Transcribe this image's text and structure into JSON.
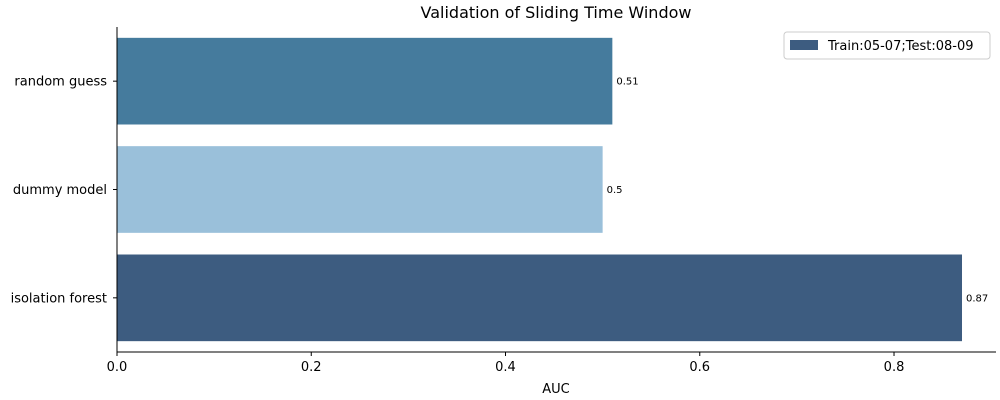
{
  "chart_data": {
    "type": "bar",
    "orientation": "horizontal",
    "title": "Validation of Sliding Time Window",
    "xlabel": "AUC",
    "ylabel": "",
    "xlim": [
      0,
      0.905
    ],
    "x_ticks": [
      "0.0",
      "0.2",
      "0.4",
      "0.6",
      "0.8"
    ],
    "categories": [
      "random guess",
      "dummy model",
      "isolation forest"
    ],
    "series": [
      {
        "name": "Train:05-07;Test:08-09",
        "values": [
          0.51,
          0.5,
          0.87
        ],
        "labels": [
          "0.51",
          "0.5",
          "0.87"
        ],
        "colors": [
          "#457b9d",
          "#9ac0da",
          "#3d5c80"
        ]
      }
    ],
    "legend_position": "top-right",
    "grid": false
  }
}
